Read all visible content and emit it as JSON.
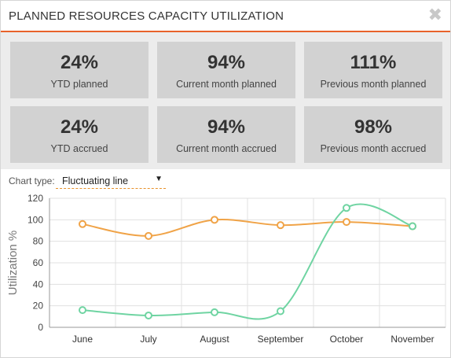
{
  "header": {
    "title": "PLANNED RESOURCES CAPACITY UTILIZATION",
    "close_glyph": "✖"
  },
  "stats": [
    {
      "value": "24%",
      "label": "YTD planned"
    },
    {
      "value": "94%",
      "label": "Current month planned"
    },
    {
      "value": "111%",
      "label": "Previous month planned"
    },
    {
      "value": "24%",
      "label": "YTD accrued"
    },
    {
      "value": "94%",
      "label": "Current month accrued"
    },
    {
      "value": "98%",
      "label": "Previous month accrued"
    }
  ],
  "controls": {
    "chart_type_label": "Chart type:",
    "chart_type_value": "Fluctuating line",
    "caret_glyph": "▼"
  },
  "chart_data": {
    "type": "line",
    "categories": [
      "June",
      "July",
      "August",
      "September",
      "October",
      "November"
    ],
    "ylabel": "Utilization %",
    "ylim": [
      0,
      120
    ],
    "yticks": [
      0,
      20,
      40,
      60,
      80,
      100,
      120
    ],
    "grid": true,
    "series": [
      {
        "color": "#f0a347",
        "values": [
          96,
          85,
          100,
          95,
          98,
          94
        ]
      },
      {
        "color": "#6fd4a2",
        "values": [
          16,
          11,
          14,
          15,
          111,
          94
        ]
      }
    ]
  }
}
